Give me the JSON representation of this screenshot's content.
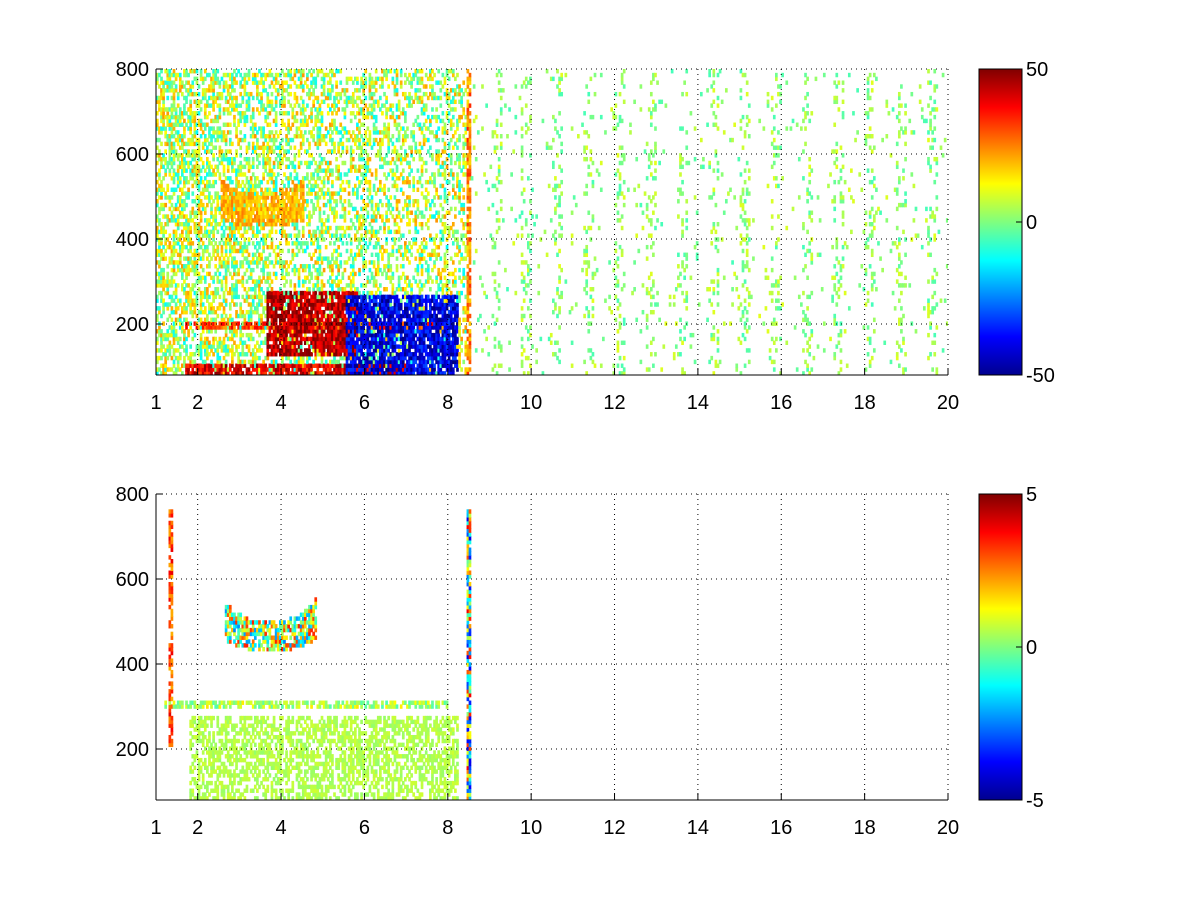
{
  "chart_data": [
    {
      "type": "heatmap",
      "title": "",
      "xlabel": "",
      "ylabel": "",
      "xlim": [
        1,
        20
      ],
      "ylim": [
        80,
        800
      ],
      "xticks": [
        1,
        2,
        4,
        6,
        8,
        10,
        12,
        14,
        16,
        18,
        20
      ],
      "yticks": [
        200,
        400,
        600,
        800
      ],
      "grid": true,
      "colormap": "jet",
      "clim": [
        -50,
        50
      ],
      "colorbar_ticks": [
        -50,
        0,
        50
      ],
      "description_regions": [
        {
          "x": [
            1.0,
            8.4
          ],
          "y": [
            80,
            800
          ],
          "value": 5,
          "kind": "dense-mixed"
        },
        {
          "x": [
            1.7,
            7.0
          ],
          "y": [
            80,
            100
          ],
          "value": 40,
          "kind": "band"
        },
        {
          "x": [
            1.7,
            8.0
          ],
          "y": [
            180,
            205
          ],
          "value": 30,
          "kind": "band"
        },
        {
          "x": [
            3.6,
            5.8
          ],
          "y": [
            120,
            270
          ],
          "value": 45,
          "kind": "blob"
        },
        {
          "x": [
            5.5,
            8.2
          ],
          "y": [
            80,
            260
          ],
          "value": -40,
          "kind": "blob"
        },
        {
          "x": [
            2.5,
            4.5
          ],
          "y": [
            430,
            560
          ],
          "value": 20,
          "kind": "arc"
        },
        {
          "x": [
            8.4,
            8.5
          ],
          "y": [
            80,
            800
          ],
          "value": 25,
          "kind": "column"
        },
        {
          "x": [
            8.5,
            20.0
          ],
          "y": [
            80,
            800
          ],
          "value": 2,
          "kind": "sparse-columns"
        }
      ]
    },
    {
      "type": "heatmap",
      "title": "",
      "xlabel": "",
      "ylabel": "",
      "xlim": [
        1,
        20
      ],
      "ylim": [
        80,
        800
      ],
      "xticks": [
        1,
        2,
        4,
        6,
        8,
        10,
        12,
        14,
        16,
        18,
        20
      ],
      "yticks": [
        200,
        400,
        600,
        800
      ],
      "grid": true,
      "colormap": "jet",
      "clim": [
        -5,
        5
      ],
      "colorbar_ticks": [
        -5,
        0,
        5
      ],
      "description_regions": [
        {
          "x": [
            1.8,
            8.2
          ],
          "y": [
            80,
            270
          ],
          "value": 0.5,
          "kind": "dense-green"
        },
        {
          "x": [
            1.2,
            8.0
          ],
          "y": [
            290,
            310
          ],
          "value": 0.5,
          "kind": "band"
        },
        {
          "x": [
            2.6,
            4.8
          ],
          "y": [
            430,
            600
          ],
          "value": 0.5,
          "kind": "arc-mixed"
        },
        {
          "x": [
            8.4,
            8.5
          ],
          "y": [
            80,
            760
          ],
          "value": 0,
          "kind": "column-mixed"
        },
        {
          "x": [
            1.3,
            1.4
          ],
          "y": [
            200,
            760
          ],
          "value": 3,
          "kind": "column"
        }
      ]
    }
  ]
}
